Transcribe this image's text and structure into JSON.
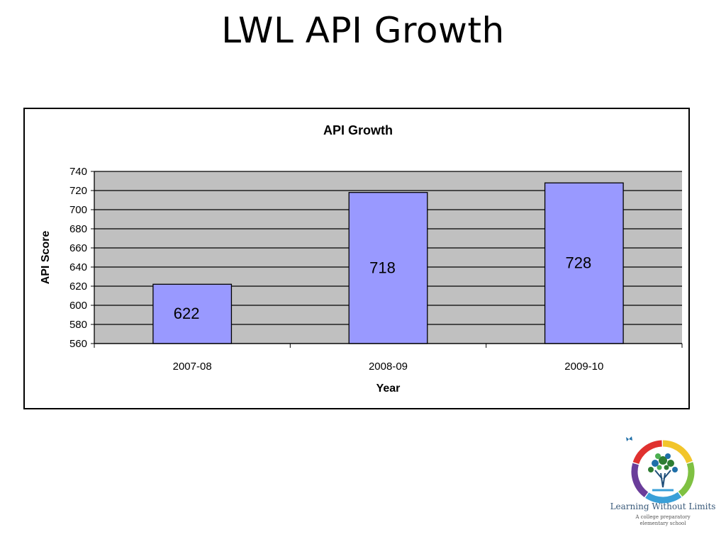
{
  "slide": {
    "title": "LWL API Growth"
  },
  "chart_data": {
    "type": "bar",
    "title": "API Growth",
    "xlabel": "Year",
    "ylabel": "API Score",
    "categories": [
      "2007-08",
      "2008-09",
      "2009-10"
    ],
    "values": [
      622,
      718,
      728
    ],
    "data_labels": [
      "622",
      "718",
      "728"
    ],
    "ylim": [
      560,
      740
    ],
    "ytick_step": 20,
    "grid": true,
    "legend": "none",
    "colors": {
      "bar_fill": "#9999ff",
      "plot_background": "#c0c0c0",
      "gridline": "#000000"
    }
  },
  "logo": {
    "name": "Learning Without Limits",
    "tagline_line1": "A college preparatory",
    "tagline_line2": "elementary school",
    "colors": [
      "#f2c52b",
      "#7fc142",
      "#3aa0d8",
      "#6a3d9a",
      "#e0312f"
    ]
  }
}
